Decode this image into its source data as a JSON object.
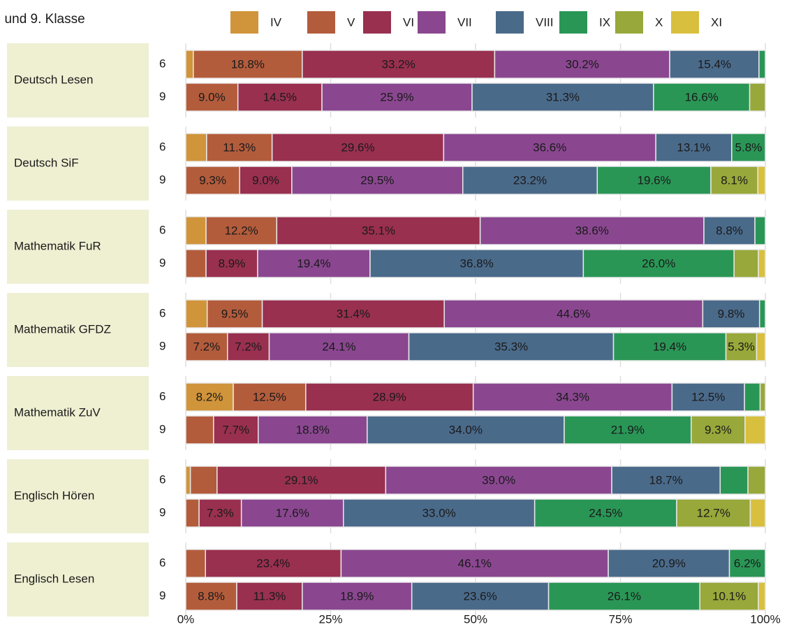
{
  "chart_data": {
    "type": "stacked-barh",
    "title": ". und 9. Klasse",
    "panels": [
      "Deutsch Lesen",
      "Deutsch SiF",
      "Mathematik FuR",
      "Mathematik GFDZ",
      "Mathematik ZuV",
      "Englisch Hören",
      "Englisch Lesen"
    ],
    "grades": [
      "6",
      "9"
    ],
    "xlim": [
      0,
      100
    ],
    "xticks": [
      {
        "value": 0,
        "label": "0%"
      },
      {
        "value": 25,
        "label": "25%"
      },
      {
        "value": 50,
        "label": "50%"
      },
      {
        "value": 75,
        "label": "75%"
      },
      {
        "value": 100,
        "label": "100%"
      }
    ],
    "grid": true,
    "legend": "top",
    "series": [
      {
        "name": "IV",
        "color": "#d0943a",
        "values": [
          [
            1.3,
            0
          ],
          [
            3.6,
            0
          ],
          [
            3.5,
            0
          ],
          [
            3.7,
            0
          ],
          [
            8.2,
            0
          ],
          [
            0.8,
            0
          ],
          [
            0,
            0
          ]
        ],
        "value_labels": [
          [
            null,
            null
          ],
          [
            null,
            null
          ],
          [
            null,
            null
          ],
          [
            null,
            null
          ],
          [
            "8.2%",
            null
          ],
          [
            null,
            null
          ],
          [
            null,
            null
          ]
        ]
      },
      {
        "name": "V",
        "color": "#b35c3c",
        "values": [
          [
            18.8,
            9.0
          ],
          [
            11.3,
            9.3
          ],
          [
            12.2,
            3.5
          ],
          [
            9.5,
            7.2
          ],
          [
            12.5,
            4.8
          ],
          [
            4.6,
            2.3
          ],
          [
            3.4,
            8.8
          ]
        ],
        "value_labels": [
          [
            "18.8%",
            "9.0%"
          ],
          [
            "11.3%",
            "9.3%"
          ],
          [
            "12.2%",
            null
          ],
          [
            "9.5%",
            "7.2%"
          ],
          [
            "12.5%",
            null
          ],
          [
            null,
            null
          ],
          [
            null,
            "8.8%"
          ]
        ]
      },
      {
        "name": "VI",
        "color": "#993050",
        "values": [
          [
            33.2,
            14.5
          ],
          [
            29.6,
            9.0
          ],
          [
            35.1,
            8.9
          ],
          [
            31.4,
            7.2
          ],
          [
            28.9,
            7.7
          ],
          [
            29.1,
            7.3
          ],
          [
            23.4,
            11.3
          ]
        ],
        "value_labels": [
          [
            "33.2%",
            "14.5%"
          ],
          [
            "29.6%",
            "9.0%"
          ],
          [
            "35.1%",
            "8.9%"
          ],
          [
            "31.4%",
            "7.2%"
          ],
          [
            "28.9%",
            "7.7%"
          ],
          [
            "29.1%",
            "7.3%"
          ],
          [
            "23.4%",
            "11.3%"
          ]
        ]
      },
      {
        "name": "VII",
        "color": "#8a4790",
        "values": [
          [
            30.2,
            25.9
          ],
          [
            36.6,
            29.5
          ],
          [
            38.6,
            19.4
          ],
          [
            44.6,
            24.1
          ],
          [
            34.3,
            18.8
          ],
          [
            39.0,
            17.6
          ],
          [
            46.1,
            18.9
          ]
        ],
        "value_labels": [
          [
            "30.2%",
            "25.9%"
          ],
          [
            "36.6%",
            "29.5%"
          ],
          [
            "38.6%",
            "19.4%"
          ],
          [
            "44.6%",
            "24.1%"
          ],
          [
            "34.3%",
            "18.8%"
          ],
          [
            "39.0%",
            "17.6%"
          ],
          [
            "46.1%",
            "18.9%"
          ]
        ]
      },
      {
        "name": "VIII",
        "color": "#4a6a8a",
        "values": [
          [
            15.4,
            31.3
          ],
          [
            13.1,
            23.2
          ],
          [
            8.8,
            36.8
          ],
          [
            9.8,
            35.3
          ],
          [
            12.5,
            34.0
          ],
          [
            18.7,
            33.0
          ],
          [
            20.9,
            23.6
          ]
        ],
        "value_labels": [
          [
            "15.4%",
            "31.3%"
          ],
          [
            "13.1%",
            "23.2%"
          ],
          [
            "8.8%",
            "36.8%"
          ],
          [
            "9.8%",
            "35.3%"
          ],
          [
            "12.5%",
            "34.0%"
          ],
          [
            "18.7%",
            "33.0%"
          ],
          [
            "20.9%",
            "23.6%"
          ]
        ]
      },
      {
        "name": "IX",
        "color": "#2a9656",
        "values": [
          [
            1.1,
            16.6
          ],
          [
            5.8,
            19.6
          ],
          [
            1.8,
            26.0
          ],
          [
            1.0,
            19.4
          ],
          [
            2.7,
            21.9
          ],
          [
            4.8,
            24.5
          ],
          [
            6.2,
            26.1
          ]
        ],
        "value_labels": [
          [
            null,
            "16.6%"
          ],
          [
            "5.8%",
            "19.6%"
          ],
          [
            null,
            "26.0%"
          ],
          [
            null,
            "19.4%"
          ],
          [
            null,
            "21.9%"
          ],
          [
            null,
            "24.5%"
          ],
          [
            "6.2%",
            "26.1%"
          ]
        ]
      },
      {
        "name": "X",
        "color": "#98a83a",
        "values": [
          [
            0,
            2.7
          ],
          [
            0,
            8.1
          ],
          [
            0,
            4.2
          ],
          [
            0,
            5.3
          ],
          [
            0.9,
            9.3
          ],
          [
            3.0,
            12.7
          ],
          [
            0,
            10.1
          ]
        ],
        "value_labels": [
          [
            null,
            null
          ],
          [
            null,
            "8.1%"
          ],
          [
            null,
            null
          ],
          [
            null,
            "5.3%"
          ],
          [
            null,
            "9.3%"
          ],
          [
            null,
            "12.7%"
          ],
          [
            null,
            "10.1%"
          ]
        ]
      },
      {
        "name": "XI",
        "color": "#d9bf3e",
        "values": [
          [
            0,
            0
          ],
          [
            0,
            1.3
          ],
          [
            0,
            1.2
          ],
          [
            0,
            1.5
          ],
          [
            0,
            3.5
          ],
          [
            0,
            2.6
          ],
          [
            0,
            1.2
          ]
        ],
        "value_labels": [
          [
            null,
            null
          ],
          [
            null,
            null
          ],
          [
            null,
            null
          ],
          [
            null,
            null
          ],
          [
            null,
            null
          ],
          [
            null,
            null
          ],
          [
            null,
            null
          ]
        ]
      }
    ]
  }
}
